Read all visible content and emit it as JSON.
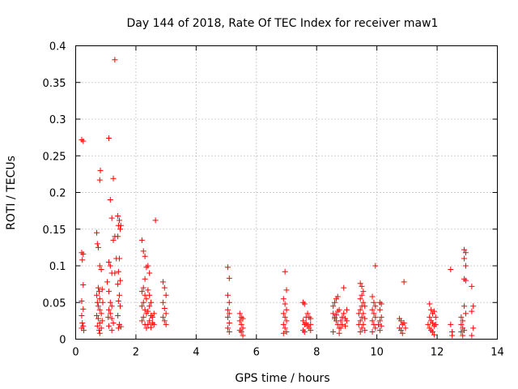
{
  "chart_data": {
    "type": "scatter",
    "title": "Day 144 of 2018, Rate Of TEC Index for receiver maw1",
    "xlabel": "GPS time / hours",
    "ylabel": "ROTI / TECUs",
    "xlim": [
      0,
      14
    ],
    "ylim": [
      0,
      0.4
    ],
    "x_ticks": [
      0,
      2,
      4,
      6,
      8,
      10,
      12,
      14
    ],
    "x_tick_labels": [
      "0",
      "2",
      "4",
      "6",
      "8",
      "10",
      "12",
      "14"
    ],
    "y_ticks": [
      0,
      0.05,
      0.1,
      0.15,
      0.2,
      0.25,
      0.3,
      0.35,
      0.4
    ],
    "y_tick_labels": [
      "0",
      "0.05",
      "0.1",
      "0.15",
      "0.2",
      "0.25",
      "0.3",
      "0.35",
      "0.4"
    ],
    "grid": true,
    "marker": "plus",
    "series_color": "#ff0000",
    "series": [
      {
        "name": "ROTI",
        "points": [
          [
            0.2,
            0.272
          ],
          [
            0.25,
            0.27
          ],
          [
            0.2,
            0.118
          ],
          [
            0.25,
            0.116
          ],
          [
            0.22,
            0.108
          ],
          [
            0.25,
            0.074
          ],
          [
            0.2,
            0.052
          ],
          [
            0.25,
            0.041
          ],
          [
            0.2,
            0.032
          ],
          [
            0.22,
            0.022
          ],
          [
            0.25,
            0.018
          ],
          [
            0.2,
            0.015
          ],
          [
            0.27,
            0.012
          ],
          [
            0.7,
            0.145
          ],
          [
            0.72,
            0.13
          ],
          [
            0.75,
            0.125
          ],
          [
            0.8,
            0.1
          ],
          [
            0.75,
            0.07
          ],
          [
            0.7,
            0.06
          ],
          [
            0.78,
            0.065
          ],
          [
            0.8,
            0.055
          ],
          [
            0.72,
            0.05
          ],
          [
            0.75,
            0.045
          ],
          [
            0.8,
            0.04
          ],
          [
            0.7,
            0.032
          ],
          [
            0.75,
            0.028
          ],
          [
            0.8,
            0.022
          ],
          [
            0.72,
            0.018
          ],
          [
            0.78,
            0.012
          ],
          [
            0.8,
            0.008
          ],
          [
            0.85,
            0.015
          ],
          [
            0.88,
            0.025
          ],
          [
            0.85,
            0.035
          ],
          [
            0.82,
            0.23
          ],
          [
            0.8,
            0.217
          ],
          [
            0.85,
            0.095
          ],
          [
            0.88,
            0.068
          ],
          [
            0.9,
            0.05
          ],
          [
            1.1,
            0.274
          ],
          [
            1.15,
            0.19
          ],
          [
            1.3,
            0.381
          ],
          [
            1.25,
            0.219
          ],
          [
            1.2,
            0.165
          ],
          [
            1.1,
            0.105
          ],
          [
            1.15,
            0.1
          ],
          [
            1.2,
            0.09
          ],
          [
            1.05,
            0.078
          ],
          [
            1.1,
            0.065
          ],
          [
            1.15,
            0.05
          ],
          [
            1.2,
            0.045
          ],
          [
            1.1,
            0.04
          ],
          [
            1.15,
            0.035
          ],
          [
            1.08,
            0.03
          ],
          [
            1.2,
            0.028
          ],
          [
            1.25,
            0.022
          ],
          [
            1.1,
            0.018
          ],
          [
            1.2,
            0.012
          ],
          [
            1.3,
            0.14
          ],
          [
            1.25,
            0.135
          ],
          [
            1.35,
            0.11
          ],
          [
            1.3,
            0.09
          ],
          [
            1.4,
            0.168
          ],
          [
            1.45,
            0.162
          ],
          [
            1.42,
            0.155
          ],
          [
            1.48,
            0.15
          ],
          [
            1.4,
            0.14
          ],
          [
            1.45,
            0.11
          ],
          [
            1.42,
            0.092
          ],
          [
            1.48,
            0.08
          ],
          [
            1.4,
            0.075
          ],
          [
            1.45,
            0.06
          ],
          [
            1.42,
            0.052
          ],
          [
            1.48,
            0.045
          ],
          [
            1.4,
            0.032
          ],
          [
            1.45,
            0.02
          ],
          [
            1.42,
            0.015
          ],
          [
            1.5,
            0.155
          ],
          [
            1.5,
            0.017
          ],
          [
            2.2,
            0.135
          ],
          [
            2.25,
            0.12
          ],
          [
            2.3,
            0.113
          ],
          [
            2.35,
            0.098
          ],
          [
            2.3,
            0.082
          ],
          [
            2.25,
            0.07
          ],
          [
            2.2,
            0.065
          ],
          [
            2.3,
            0.06
          ],
          [
            2.35,
            0.055
          ],
          [
            2.25,
            0.05
          ],
          [
            2.2,
            0.045
          ],
          [
            2.3,
            0.04
          ],
          [
            2.35,
            0.035
          ],
          [
            2.25,
            0.03
          ],
          [
            2.2,
            0.025
          ],
          [
            2.3,
            0.02
          ],
          [
            2.35,
            0.015
          ],
          [
            2.4,
            0.067
          ],
          [
            2.45,
            0.06
          ],
          [
            2.5,
            0.05
          ],
          [
            2.45,
            0.045
          ],
          [
            2.4,
            0.038
          ],
          [
            2.5,
            0.032
          ],
          [
            2.45,
            0.025
          ],
          [
            2.4,
            0.02
          ],
          [
            2.5,
            0.016
          ],
          [
            2.55,
            0.03
          ],
          [
            2.55,
            0.022
          ],
          [
            2.6,
            0.035
          ],
          [
            2.6,
            0.02
          ],
          [
            2.65,
            0.162
          ],
          [
            2.4,
            0.1
          ],
          [
            2.45,
            0.09
          ],
          [
            2.9,
            0.078
          ],
          [
            2.95,
            0.07
          ],
          [
            3.0,
            0.06
          ],
          [
            2.9,
            0.05
          ],
          [
            2.95,
            0.042
          ],
          [
            3.0,
            0.035
          ],
          [
            2.9,
            0.03
          ],
          [
            2.95,
            0.025
          ],
          [
            3.0,
            0.02
          ],
          [
            5.05,
            0.098
          ],
          [
            5.1,
            0.083
          ],
          [
            5.05,
            0.06
          ],
          [
            5.1,
            0.05
          ],
          [
            5.05,
            0.04
          ],
          [
            5.1,
            0.035
          ],
          [
            5.05,
            0.03
          ],
          [
            5.1,
            0.022
          ],
          [
            5.05,
            0.015
          ],
          [
            5.1,
            0.01
          ],
          [
            5.45,
            0.035
          ],
          [
            5.5,
            0.03
          ],
          [
            5.55,
            0.028
          ],
          [
            5.45,
            0.025
          ],
          [
            5.5,
            0.02
          ],
          [
            5.55,
            0.015
          ],
          [
            5.45,
            0.012
          ],
          [
            5.5,
            0.01
          ],
          [
            5.55,
            0.005
          ],
          [
            6.95,
            0.092
          ],
          [
            7.0,
            0.067
          ],
          [
            6.9,
            0.055
          ],
          [
            6.95,
            0.048
          ],
          [
            7.0,
            0.04
          ],
          [
            6.9,
            0.035
          ],
          [
            6.95,
            0.03
          ],
          [
            7.0,
            0.025
          ],
          [
            6.9,
            0.02
          ],
          [
            6.95,
            0.015
          ],
          [
            7.0,
            0.01
          ],
          [
            6.9,
            0.008
          ],
          [
            7.55,
            0.05
          ],
          [
            7.6,
            0.048
          ],
          [
            7.65,
            0.03
          ],
          [
            7.55,
            0.025
          ],
          [
            7.6,
            0.02
          ],
          [
            7.7,
            0.035
          ],
          [
            7.75,
            0.03
          ],
          [
            7.65,
            0.022
          ],
          [
            7.7,
            0.018
          ],
          [
            7.75,
            0.015
          ],
          [
            7.55,
            0.012
          ],
          [
            7.6,
            0.01
          ],
          [
            7.8,
            0.028
          ],
          [
            7.8,
            0.02
          ],
          [
            7.8,
            0.012
          ],
          [
            8.55,
            0.045
          ],
          [
            8.6,
            0.05
          ],
          [
            8.65,
            0.055
          ],
          [
            8.7,
            0.058
          ],
          [
            8.75,
            0.04
          ],
          [
            8.55,
            0.035
          ],
          [
            8.6,
            0.03
          ],
          [
            8.65,
            0.025
          ],
          [
            8.7,
            0.02
          ],
          [
            8.75,
            0.015
          ],
          [
            8.55,
            0.01
          ],
          [
            8.6,
            0.028
          ],
          [
            8.65,
            0.033
          ],
          [
            8.7,
            0.038
          ],
          [
            8.8,
            0.025
          ],
          [
            8.8,
            0.015
          ],
          [
            8.85,
            0.03
          ],
          [
            8.85,
            0.02
          ],
          [
            8.9,
            0.07
          ],
          [
            8.9,
            0.035
          ],
          [
            8.95,
            0.028
          ],
          [
            8.95,
            0.018
          ],
          [
            9.0,
            0.04
          ],
          [
            9.0,
            0.025
          ],
          [
            8.75,
            0.008
          ],
          [
            9.45,
            0.076
          ],
          [
            9.5,
            0.072
          ],
          [
            9.55,
            0.065
          ],
          [
            9.5,
            0.06
          ],
          [
            9.45,
            0.055
          ],
          [
            9.55,
            0.05
          ],
          [
            9.5,
            0.045
          ],
          [
            9.45,
            0.04
          ],
          [
            9.55,
            0.035
          ],
          [
            9.5,
            0.03
          ],
          [
            9.45,
            0.025
          ],
          [
            9.55,
            0.02
          ],
          [
            9.5,
            0.015
          ],
          [
            9.45,
            0.01
          ],
          [
            9.6,
            0.028
          ],
          [
            9.6,
            0.045
          ],
          [
            9.6,
            0.012
          ],
          [
            9.4,
            0.035
          ],
          [
            9.4,
            0.02
          ],
          [
            9.95,
            0.1
          ],
          [
            9.85,
            0.058
          ],
          [
            9.9,
            0.05
          ],
          [
            9.95,
            0.045
          ],
          [
            9.85,
            0.04
          ],
          [
            9.9,
            0.035
          ],
          [
            9.95,
            0.03
          ],
          [
            9.85,
            0.025
          ],
          [
            9.9,
            0.02
          ],
          [
            9.95,
            0.015
          ],
          [
            9.85,
            0.01
          ],
          [
            10.1,
            0.05
          ],
          [
            10.15,
            0.048
          ],
          [
            10.1,
            0.04
          ],
          [
            10.15,
            0.03
          ],
          [
            10.1,
            0.025
          ],
          [
            10.15,
            0.018
          ],
          [
            10.1,
            0.012
          ],
          [
            10.05,
            0.02
          ],
          [
            10.75,
            0.028
          ],
          [
            10.8,
            0.025
          ],
          [
            10.85,
            0.02
          ],
          [
            10.75,
            0.015
          ],
          [
            10.8,
            0.012
          ],
          [
            10.85,
            0.008
          ],
          [
            10.9,
            0.078
          ],
          [
            10.9,
            0.022
          ],
          [
            10.95,
            0.015
          ],
          [
            11.75,
            0.048
          ],
          [
            11.8,
            0.04
          ],
          [
            11.85,
            0.035
          ],
          [
            11.9,
            0.038
          ],
          [
            11.75,
            0.03
          ],
          [
            11.8,
            0.025
          ],
          [
            11.85,
            0.022
          ],
          [
            11.9,
            0.018
          ],
          [
            11.75,
            0.015
          ],
          [
            11.8,
            0.012
          ],
          [
            11.85,
            0.01
          ],
          [
            11.95,
            0.03
          ],
          [
            11.95,
            0.02
          ],
          [
            11.7,
            0.02
          ],
          [
            11.9,
            0.006
          ],
          [
            12.45,
            0.095
          ],
          [
            12.45,
            0.02
          ],
          [
            12.5,
            0.01
          ],
          [
            12.5,
            0.005
          ],
          [
            12.8,
            0.03
          ],
          [
            12.85,
            0.025
          ],
          [
            12.8,
            0.02
          ],
          [
            12.85,
            0.015
          ],
          [
            12.8,
            0.01
          ],
          [
            12.85,
            0.005
          ],
          [
            12.9,
            0.122
          ],
          [
            12.95,
            0.118
          ],
          [
            12.9,
            0.11
          ],
          [
            12.95,
            0.1
          ],
          [
            12.9,
            0.082
          ],
          [
            12.95,
            0.08
          ],
          [
            12.9,
            0.045
          ],
          [
            12.95,
            0.035
          ],
          [
            12.9,
            0.012
          ],
          [
            13.15,
            0.072
          ],
          [
            13.2,
            0.045
          ],
          [
            13.15,
            0.038
          ],
          [
            13.2,
            0.015
          ],
          [
            13.15,
            0.005
          ]
        ]
      }
    ]
  }
}
